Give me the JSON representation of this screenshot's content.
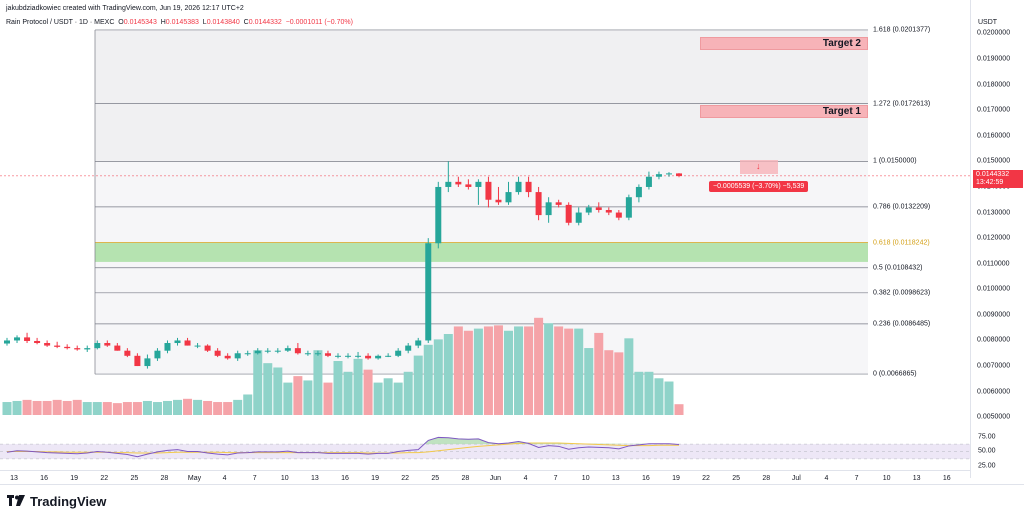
{
  "header": {
    "creator": "jakubdziadkowiec created with TradingView.com, Jun 19, 2026 12:17 UTC+2",
    "pair": "Rain Protocol / USDT · 1D · MEXC",
    "ohlc": [
      {
        "label": "O",
        "value": "0.0145343"
      },
      {
        "label": "H",
        "value": "0.0145383"
      },
      {
        "label": "L",
        "value": "0.0143840"
      },
      {
        "label": "C",
        "value": "0.0144332"
      }
    ],
    "change": "−0.0001011 (−0.70%)"
  },
  "price_axis": {
    "currency": "USDT",
    "ticks": [
      "0.0200000",
      "0.0190000",
      "0.0180000",
      "0.0170000",
      "0.0160000",
      "0.0150000",
      "0.0140000",
      "0.0130000",
      "0.0120000",
      "0.0110000",
      "0.0100000",
      "0.0090000",
      "0.0080000",
      "0.0070000",
      "0.0060000",
      "0.0050000"
    ],
    "last_price": "0.0144332",
    "countdown": "13:42:59"
  },
  "fib_levels": [
    {
      "label": "1.618 (0.0201377)",
      "price": 0.0201377
    },
    {
      "label": "1.272 (0.0172613)",
      "price": 0.0172613
    },
    {
      "label": "1 (0.0150000)",
      "price": 0.015
    },
    {
      "label": "0.786 (0.0132209)",
      "price": 0.0132209
    },
    {
      "label": "0.618 (0.0118242)",
      "price": 0.0118242,
      "highlight": true
    },
    {
      "label": "0.5 (0.0108432)",
      "price": 0.0108432
    },
    {
      "label": "0.382 (0.0098623)",
      "price": 0.0098623
    },
    {
      "label": "0.236 (0.0086485)",
      "price": 0.0086485
    },
    {
      "label": "0 (0.0066865)",
      "price": 0.0066865
    }
  ],
  "targets": [
    {
      "label": "Target 2"
    },
    {
      "label": "Target 1"
    }
  ],
  "measure": {
    "text": "−0.0005539 (−3.70%) −5,539"
  },
  "rsi": {
    "ticks": [
      "75.00",
      "50.00",
      "25.00"
    ]
  },
  "time_axis": {
    "ticks": [
      "13",
      "16",
      "19",
      "22",
      "25",
      "28",
      "May",
      "4",
      "7",
      "10",
      "13",
      "16",
      "19",
      "22",
      "25",
      "28",
      "Jun",
      "4",
      "7",
      "10",
      "13",
      "16",
      "19",
      "22",
      "25",
      "28",
      "Jul",
      "4",
      "7",
      "10",
      "13",
      "16"
    ]
  },
  "footer": {
    "brand": "TradingView"
  },
  "colors": {
    "up": "#26a69a",
    "down": "#f23645",
    "up_vol": "#8fd3c9",
    "down_vol": "#f5a3a8",
    "zone": "#b5e3b0",
    "rsi_band": "#ede7f6",
    "rsi_line": "#7e57c2",
    "rsi_ma": "#f2c94c"
  },
  "chart_data": {
    "type": "candlestick",
    "x": [
      "Apr 13",
      "Apr 14",
      "Apr 15",
      "Apr 16",
      "Apr 17",
      "Apr 18",
      "Apr 19",
      "Apr 20",
      "Apr 21",
      "Apr 22",
      "Apr 23",
      "Apr 24",
      "Apr 25",
      "Apr 26",
      "Apr 27",
      "Apr 28",
      "Apr 29",
      "Apr 30",
      "May 1",
      "May 2",
      "May 3",
      "May 4",
      "May 5",
      "May 6",
      "May 7",
      "May 8",
      "May 9",
      "May 10",
      "May 11",
      "May 12",
      "May 13",
      "May 14",
      "May 15",
      "May 16",
      "May 17",
      "May 18",
      "May 19",
      "May 20",
      "May 21",
      "May 22",
      "May 23",
      "May 24",
      "May 25",
      "May 26",
      "May 27",
      "May 28",
      "May 29",
      "May 30",
      "May 31",
      "Jun 1",
      "Jun 2",
      "Jun 3",
      "Jun 4",
      "Jun 5",
      "Jun 6",
      "Jun 7",
      "Jun 8",
      "Jun 9",
      "Jun 10",
      "Jun 11",
      "Jun 12",
      "Jun 13",
      "Jun 14",
      "Jun 15",
      "Jun 16",
      "Jun 17",
      "Jun 18",
      "Jun 19"
    ],
    "open": [
      0.00788,
      0.008,
      0.00812,
      0.00798,
      0.0079,
      0.0078,
      0.00775,
      0.0077,
      0.00765,
      0.0077,
      0.0079,
      0.0078,
      0.0076,
      0.0074,
      0.007,
      0.0073,
      0.0076,
      0.0079,
      0.008,
      0.0078,
      0.0078,
      0.0076,
      0.0074,
      0.0073,
      0.0075,
      0.0075,
      0.0076,
      0.0076,
      0.0076,
      0.0077,
      0.0075,
      0.0075,
      0.0075,
      0.0074,
      0.0074,
      0.0074,
      0.0074,
      0.0073,
      0.0074,
      0.0074,
      0.0076,
      0.0078,
      0.008,
      0.0118,
      0.014,
      0.0142,
      0.0141,
      0.014,
      0.0142,
      0.0135,
      0.0134,
      0.0138,
      0.0142,
      0.0138,
      0.0129,
      0.0134,
      0.0133,
      0.0126,
      0.013,
      0.0132,
      0.0131,
      0.013,
      0.0128,
      0.0136,
      0.014,
      0.0144,
      0.0145,
      0.01453
    ],
    "high": [
      0.0081,
      0.0082,
      0.0083,
      0.0081,
      0.008,
      0.00795,
      0.00785,
      0.0078,
      0.0078,
      0.008,
      0.008,
      0.0079,
      0.0077,
      0.0075,
      0.00745,
      0.0077,
      0.008,
      0.0081,
      0.0081,
      0.0079,
      0.00785,
      0.0077,
      0.0075,
      0.0076,
      0.0076,
      0.0077,
      0.0077,
      0.0077,
      0.0078,
      0.0079,
      0.0076,
      0.0076,
      0.0076,
      0.0075,
      0.0075,
      0.00755,
      0.0075,
      0.00745,
      0.0075,
      0.0077,
      0.0079,
      0.0081,
      0.012,
      0.0142,
      0.015,
      0.0144,
      0.0143,
      0.0143,
      0.0144,
      0.014,
      0.0142,
      0.0144,
      0.0144,
      0.014,
      0.0136,
      0.0135,
      0.0134,
      0.0132,
      0.0133,
      0.0134,
      0.0132,
      0.0131,
      0.0137,
      0.0141,
      0.0146,
      0.0146,
      0.01458,
      0.01454
    ],
    "low": [
      0.0078,
      0.0079,
      0.0079,
      0.00785,
      0.00775,
      0.0077,
      0.00765,
      0.0076,
      0.00755,
      0.00765,
      0.00775,
      0.0076,
      0.00735,
      0.007,
      0.0069,
      0.0072,
      0.0075,
      0.0078,
      0.0078,
      0.0077,
      0.00755,
      0.00735,
      0.00725,
      0.0072,
      0.0074,
      0.00745,
      0.0075,
      0.0075,
      0.00755,
      0.00745,
      0.0074,
      0.0074,
      0.00735,
      0.0073,
      0.0073,
      0.0073,
      0.00725,
      0.00725,
      0.00735,
      0.00735,
      0.0075,
      0.0077,
      0.0079,
      0.0116,
      0.0138,
      0.014,
      0.0139,
      0.0133,
      0.0132,
      0.0133,
      0.0133,
      0.0137,
      0.0136,
      0.0127,
      0.0126,
      0.0132,
      0.0125,
      0.0125,
      0.0129,
      0.013,
      0.0129,
      0.0127,
      0.0127,
      0.0134,
      0.0139,
      0.0143,
      0.0144,
      0.01438
    ],
    "close": [
      0.008,
      0.00812,
      0.00798,
      0.0079,
      0.0078,
      0.00775,
      0.0077,
      0.00765,
      0.0077,
      0.0079,
      0.0078,
      0.0076,
      0.0074,
      0.007,
      0.0073,
      0.0076,
      0.0079,
      0.008,
      0.0078,
      0.0078,
      0.0076,
      0.0074,
      0.0073,
      0.0075,
      0.0075,
      0.0076,
      0.0076,
      0.0076,
      0.0077,
      0.0075,
      0.0075,
      0.0075,
      0.0074,
      0.0074,
      0.0074,
      0.0074,
      0.0073,
      0.0074,
      0.0074,
      0.0076,
      0.0078,
      0.008,
      0.0118,
      0.014,
      0.0142,
      0.0141,
      0.014,
      0.0142,
      0.0135,
      0.0134,
      0.0138,
      0.0142,
      0.0138,
      0.0129,
      0.0134,
      0.0133,
      0.0126,
      0.013,
      0.0132,
      0.0131,
      0.013,
      0.0128,
      0.0136,
      0.014,
      0.0144,
      0.0145,
      0.01453,
      0.01443
    ],
    "volume": [
      0.12,
      0.13,
      0.14,
      0.13,
      0.13,
      0.14,
      0.13,
      0.14,
      0.12,
      0.12,
      0.12,
      0.11,
      0.12,
      0.12,
      0.13,
      0.12,
      0.13,
      0.14,
      0.15,
      0.14,
      0.13,
      0.12,
      0.12,
      0.14,
      0.19,
      0.6,
      0.48,
      0.44,
      0.3,
      0.36,
      0.32,
      0.6,
      0.3,
      0.5,
      0.4,
      0.52,
      0.42,
      0.3,
      0.34,
      0.3,
      0.4,
      0.55,
      0.65,
      0.7,
      0.75,
      0.82,
      0.78,
      0.8,
      0.82,
      0.83,
      0.78,
      0.82,
      0.82,
      0.9,
      0.85,
      0.82,
      0.8,
      0.8,
      0.62,
      0.76,
      0.6,
      0.58,
      0.71,
      0.4,
      0.4,
      0.34,
      0.31,
      0.1
    ],
    "rsi": [
      48,
      52,
      51,
      49,
      47,
      46,
      45,
      44,
      46,
      50,
      48,
      45,
      42,
      36,
      43,
      49,
      53,
      55,
      50,
      50,
      46,
      43,
      41,
      46,
      47,
      49,
      49,
      49,
      51,
      47,
      47,
      47,
      45,
      45,
      45,
      45,
      43,
      45,
      45,
      50,
      53,
      55,
      80,
      88,
      87,
      84,
      83,
      84,
      74,
      71,
      73,
      77,
      72,
      61,
      66,
      64,
      56,
      60,
      62,
      61,
      60,
      57,
      65,
      68,
      71,
      71,
      71,
      69
    ],
    "rsi_ma": [
      50,
      50,
      50,
      50,
      49,
      49,
      48,
      48,
      48,
      48,
      48,
      47,
      47,
      46,
      46,
      46,
      47,
      48,
      48,
      48,
      48,
      48,
      47,
      47,
      47,
      47,
      47,
      47,
      47,
      47,
      47,
      47,
      47,
      47,
      47,
      47,
      46,
      46,
      46,
      46,
      47,
      47,
      49,
      52,
      55,
      58,
      61,
      64,
      66,
      68,
      70,
      72,
      73,
      73,
      73,
      73,
      72,
      71,
      70,
      69,
      68,
      67,
      66,
      66,
      66,
      67,
      67,
      67
    ],
    "ylim": [
      0.0045,
      0.0208
    ]
  }
}
